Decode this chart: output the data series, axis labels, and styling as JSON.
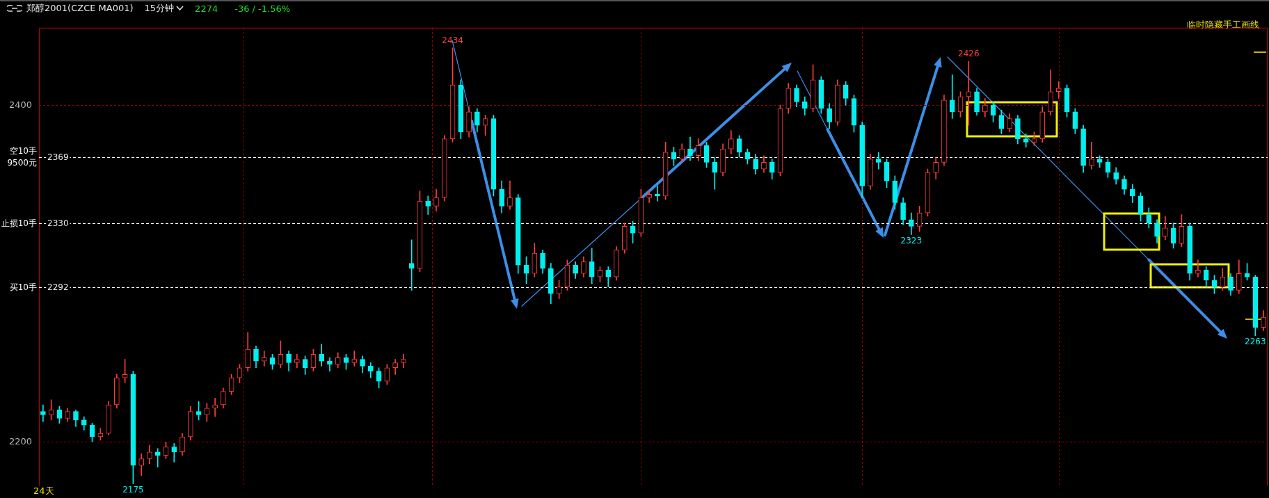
{
  "chart_data": {
    "type": "candlestick",
    "title": "郑醇2001(CZCE MA001)",
    "subtitle": "15分钟",
    "categories": [
      null,
      null,
      null,
      null,
      null,
      null,
      null,
      null,
      null,
      null,
      null,
      null,
      null,
      null,
      null,
      null,
      null,
      null,
      null,
      null,
      null,
      null,
      null,
      null,
      null,
      null,
      null,
      null,
      null,
      null,
      null,
      null,
      null,
      null,
      null,
      null,
      null,
      null,
      null,
      null,
      null,
      null,
      null,
      null,
      null,
      null,
      null,
      null,
      null,
      null,
      null,
      null,
      null,
      null,
      null,
      null,
      null,
      null,
      null,
      null,
      null,
      null,
      null,
      null,
      null,
      null,
      null,
      null,
      null,
      null,
      null,
      null,
      null,
      null,
      null,
      null,
      null,
      null,
      null,
      null,
      null,
      null,
      null,
      null,
      null,
      null,
      null,
      null,
      null,
      null,
      null,
      null,
      null,
      null,
      null,
      null,
      null,
      null,
      null,
      null,
      null,
      null,
      null,
      null,
      null,
      null,
      null,
      null,
      null,
      null,
      null,
      null,
      null,
      null,
      null,
      null,
      null,
      null,
      null,
      null,
      null,
      null,
      null,
      null,
      null,
      null,
      null,
      null,
      null,
      null,
      null,
      null,
      null,
      null,
      null,
      null,
      null,
      null,
      null,
      null,
      null,
      null,
      null,
      null,
      null,
      null,
      null,
      null,
      null,
      null
    ],
    "ohlc": [
      [
        2218,
        2222,
        2212,
        2216
      ],
      [
        2216,
        2225,
        2213,
        2219
      ],
      [
        2219,
        2221,
        2211,
        2214
      ],
      [
        2214,
        2220,
        2212,
        2218
      ],
      [
        2218,
        2219,
        2209,
        2213
      ],
      [
        2213,
        2215,
        2207,
        2210
      ],
      [
        2210,
        2211,
        2200,
        2203
      ],
      [
        2203,
        2208,
        2201,
        2205
      ],
      [
        2205,
        2224,
        2204,
        2222
      ],
      [
        2222,
        2240,
        2220,
        2238
      ],
      [
        2238,
        2249,
        2235,
        2240
      ],
      [
        2240,
        2242,
        2175,
        2186
      ],
      [
        2186,
        2193,
        2180,
        2190
      ],
      [
        2190,
        2198,
        2187,
        2194
      ],
      [
        2194,
        2196,
        2185,
        2192
      ],
      [
        2192,
        2200,
        2190,
        2197
      ],
      [
        2197,
        2199,
        2188,
        2194
      ],
      [
        2194,
        2205,
        2192,
        2203
      ],
      [
        2203,
        2221,
        2201,
        2218
      ],
      [
        2218,
        2224,
        2213,
        2216
      ],
      [
        2216,
        2223,
        2212,
        2220
      ],
      [
        2220,
        2226,
        2215,
        2222
      ],
      [
        2222,
        2232,
        2220,
        2230
      ],
      [
        2230,
        2240,
        2228,
        2238
      ],
      [
        2238,
        2246,
        2235,
        2244
      ],
      [
        2244,
        2265,
        2242,
        2255
      ],
      [
        2255,
        2257,
        2244,
        2248
      ],
      [
        2248,
        2254,
        2245,
        2250
      ],
      [
        2250,
        2252,
        2243,
        2246
      ],
      [
        2246,
        2260,
        2244,
        2252
      ],
      [
        2252,
        2254,
        2242,
        2247
      ],
      [
        2247,
        2252,
        2244,
        2249
      ],
      [
        2249,
        2251,
        2240,
        2244
      ],
      [
        2244,
        2255,
        2242,
        2252
      ],
      [
        2252,
        2258,
        2245,
        2248
      ],
      [
        2248,
        2250,
        2242,
        2246
      ],
      [
        2246,
        2253,
        2244,
        2250
      ],
      [
        2250,
        2252,
        2243,
        2247
      ],
      [
        2247,
        2254,
        2245,
        2249
      ],
      [
        2249,
        2251,
        2241,
        2245
      ],
      [
        2245,
        2247,
        2238,
        2242
      ],
      [
        2242,
        2244,
        2232,
        2236
      ],
      [
        2236,
        2246,
        2234,
        2244
      ],
      [
        2244,
        2249,
        2240,
        2247
      ],
      [
        2247,
        2252,
        2244,
        2249
      ],
      [
        2306,
        2320,
        2290,
        2303
      ],
      [
        2303,
        2349,
        2301,
        2343
      ],
      [
        2343,
        2346,
        2335,
        2340
      ],
      [
        2340,
        2350,
        2337,
        2345
      ],
      [
        2345,
        2382,
        2343,
        2380
      ],
      [
        2380,
        2434,
        2378,
        2412
      ],
      [
        2412,
        2415,
        2380,
        2384
      ],
      [
        2384,
        2399,
        2381,
        2396
      ],
      [
        2396,
        2398,
        2384,
        2388
      ],
      [
        2388,
        2394,
        2382,
        2392
      ],
      [
        2392,
        2394,
        2346,
        2350
      ],
      [
        2350,
        2355,
        2336,
        2340
      ],
      [
        2340,
        2355,
        2338,
        2345
      ],
      [
        2345,
        2347,
        2300,
        2305
      ],
      [
        2305,
        2310,
        2294,
        2300
      ],
      [
        2300,
        2318,
        2298,
        2312
      ],
      [
        2312,
        2314,
        2300,
        2303
      ],
      [
        2303,
        2306,
        2282,
        2288
      ],
      [
        2288,
        2296,
        2285,
        2292
      ],
      [
        2292,
        2308,
        2290,
        2305
      ],
      [
        2305,
        2307,
        2297,
        2300
      ],
      [
        2300,
        2310,
        2298,
        2307
      ],
      [
        2307,
        2315,
        2294,
        2298
      ],
      [
        2298,
        2304,
        2295,
        2302
      ],
      [
        2302,
        2304,
        2292,
        2298
      ],
      [
        2298,
        2316,
        2296,
        2314
      ],
      [
        2314,
        2330,
        2312,
        2328
      ],
      [
        2328,
        2331,
        2318,
        2324
      ],
      [
        2324,
        2350,
        2322,
        2345
      ],
      [
        2345,
        2349,
        2342,
        2347
      ],
      [
        2347,
        2352,
        2343,
        2346
      ],
      [
        2346,
        2378,
        2344,
        2372
      ],
      [
        2372,
        2375,
        2364,
        2368
      ],
      [
        2368,
        2377,
        2366,
        2374
      ],
      [
        2374,
        2381,
        2367,
        2370
      ],
      [
        2370,
        2380,
        2367,
        2376
      ],
      [
        2376,
        2378,
        2363,
        2366
      ],
      [
        2366,
        2369,
        2350,
        2360
      ],
      [
        2360,
        2377,
        2358,
        2374
      ],
      [
        2374,
        2385,
        2371,
        2380
      ],
      [
        2380,
        2382,
        2369,
        2372
      ],
      [
        2372,
        2374,
        2365,
        2368
      ],
      [
        2368,
        2371,
        2359,
        2362
      ],
      [
        2362,
        2370,
        2360,
        2366
      ],
      [
        2366,
        2368,
        2356,
        2360
      ],
      [
        2360,
        2400,
        2358,
        2398
      ],
      [
        2398,
        2413,
        2395,
        2410
      ],
      [
        2410,
        2412,
        2399,
        2402
      ],
      [
        2402,
        2405,
        2394,
        2398
      ],
      [
        2398,
        2424,
        2396,
        2415
      ],
      [
        2415,
        2417,
        2395,
        2398
      ],
      [
        2398,
        2401,
        2386,
        2390
      ],
      [
        2390,
        2415,
        2388,
        2412
      ],
      [
        2412,
        2414,
        2400,
        2404
      ],
      [
        2404,
        2406,
        2384,
        2388
      ],
      [
        2388,
        2390,
        2345,
        2352
      ],
      [
        2352,
        2371,
        2350,
        2368
      ],
      [
        2368,
        2372,
        2362,
        2366
      ],
      [
        2366,
        2368,
        2351,
        2355
      ],
      [
        2355,
        2358,
        2338,
        2342
      ],
      [
        2342,
        2345,
        2329,
        2332
      ],
      [
        2332,
        2336,
        2323,
        2328
      ],
      [
        2328,
        2340,
        2325,
        2336
      ],
      [
        2336,
        2362,
        2334,
        2360
      ],
      [
        2360,
        2369,
        2356,
        2366
      ],
      [
        2366,
        2406,
        2364,
        2403
      ],
      [
        2403,
        2418,
        2392,
        2396
      ],
      [
        2396,
        2408,
        2393,
        2405
      ],
      [
        2405,
        2426,
        2388,
        2408
      ],
      [
        2408,
        2410,
        2394,
        2396
      ],
      [
        2396,
        2404,
        2393,
        2400
      ],
      [
        2400,
        2402,
        2390,
        2394
      ],
      [
        2394,
        2397,
        2383,
        2386
      ],
      [
        2386,
        2395,
        2384,
        2392
      ],
      [
        2392,
        2394,
        2377,
        2380
      ],
      [
        2380,
        2383,
        2375,
        2378
      ],
      [
        2378,
        2384,
        2376,
        2380
      ],
      [
        2380,
        2399,
        2378,
        2396
      ],
      [
        2396,
        2421,
        2394,
        2408
      ],
      [
        2408,
        2414,
        2404,
        2410
      ],
      [
        2410,
        2412,
        2393,
        2396
      ],
      [
        2396,
        2398,
        2383,
        2386
      ],
      [
        2386,
        2388,
        2360,
        2364
      ],
      [
        2364,
        2378,
        2362,
        2368
      ],
      [
        2368,
        2370,
        2363,
        2366
      ],
      [
        2366,
        2368,
        2357,
        2360
      ],
      [
        2360,
        2363,
        2353,
        2356
      ],
      [
        2356,
        2358,
        2347,
        2350
      ],
      [
        2350,
        2353,
        2342,
        2346
      ],
      [
        2346,
        2348,
        2331,
        2335
      ],
      [
        2335,
        2339,
        2327,
        2330
      ],
      [
        2330,
        2332,
        2318,
        2322
      ],
      [
        2322,
        2334,
        2320,
        2327
      ],
      [
        2327,
        2330,
        2315,
        2318
      ],
      [
        2318,
        2335,
        2316,
        2328
      ],
      [
        2328,
        2330,
        2296,
        2300
      ],
      [
        2300,
        2308,
        2298,
        2302
      ],
      [
        2302,
        2304,
        2292,
        2296
      ],
      [
        2296,
        2299,
        2288,
        2292
      ],
      [
        2292,
        2303,
        2290,
        2298
      ],
      [
        2298,
        2300,
        2287,
        2290
      ],
      [
        2290,
        2308,
        2288,
        2300
      ],
      [
        2300,
        2306,
        2296,
        2298
      ],
      [
        2298,
        2299,
        2263,
        2268
      ],
      [
        2268,
        2278,
        2266,
        2274
      ]
    ],
    "ylim": [
      2174,
      2446
    ],
    "yticks": [
      2200,
      2400
    ],
    "grid": true,
    "tick_labels": "y",
    "ref_lines": [
      {
        "axis": "y",
        "value": 2369,
        "label": "空10手 9500元",
        "color": "#ffffff",
        "line_style": "dashed"
      },
      {
        "axis": "y",
        "value": 2330,
        "label": "止损10手",
        "color": "#ffffff",
        "line_style": "dashed"
      },
      {
        "axis": "y",
        "value": 2292,
        "label": "买10手",
        "color": "#ffffff",
        "line_style": "dashed"
      }
    ],
    "annotations": [
      "2274",
      "-36 / -1.56%",
      "24天",
      "临时隐藏手工画线",
      {
        "text": "2369",
        "y": 2369
      },
      {
        "text": "2330",
        "y": 2330
      },
      {
        "text": "2292",
        "y": 2292
      },
      {
        "text": "2434",
        "y": 2434
      },
      {
        "text": "2175",
        "y": 2175
      },
      {
        "text": "2323",
        "y": 2323
      },
      {
        "text": "2426",
        "y": 2426
      },
      {
        "text": "2263",
        "y": 2263
      }
    ]
  }
}
